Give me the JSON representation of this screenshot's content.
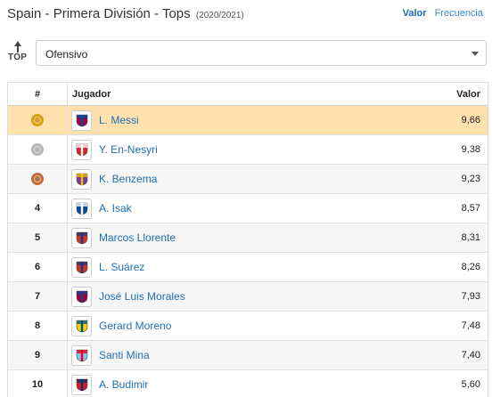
{
  "header": {
    "title": "Spain - Primera División - Tops",
    "season": "(2020/2021)",
    "toggle_value": "Valor",
    "toggle_frequency": "Frecuencia"
  },
  "top_icon_label": "TOP",
  "category_select": {
    "selected": "Ofensivo"
  },
  "table": {
    "headers": {
      "rank": "#",
      "player": "Jugador",
      "value": "Valor"
    },
    "rows": [
      {
        "rank": "",
        "medal": "gold",
        "medal_color": "#d4a017",
        "player": "L. Messi",
        "value": "9,66",
        "club_icon": "barcelona-crest-icon",
        "crest_colors": [
          "#a50044",
          "#004d98"
        ]
      },
      {
        "rank": "",
        "medal": "silver",
        "medal_color": "#b7b7b7",
        "player": "Y. En-Nesyri",
        "value": "9,38",
        "club_icon": "sevilla-crest-icon",
        "crest_colors": [
          "#d9262e",
          "#ffffff"
        ]
      },
      {
        "rank": "",
        "medal": "bronze",
        "medal_color": "#c0703e",
        "player": "K. Benzema",
        "value": "9,23",
        "club_icon": "real-madrid-crest-icon",
        "crest_colors": [
          "#6d3c9c",
          "#f0c000"
        ]
      },
      {
        "rank": "4",
        "player": "A. Isak",
        "value": "8,57",
        "club_icon": "real-sociedad-crest-icon",
        "crest_colors": [
          "#0b4aa2",
          "#ffffff"
        ]
      },
      {
        "rank": "5",
        "player": "Marcos Llorente",
        "value": "8,31",
        "club_icon": "atletico-madrid-crest-icon",
        "crest_colors": [
          "#cb3524",
          "#27387a"
        ]
      },
      {
        "rank": "6",
        "player": "L. Suárez",
        "value": "8,26",
        "club_icon": "atletico-madrid-crest-icon",
        "crest_colors": [
          "#cb3524",
          "#27387a"
        ]
      },
      {
        "rank": "7",
        "player": "José Luis Morales",
        "value": "7,93",
        "club_icon": "levante-crest-icon",
        "crest_colors": [
          "#a0002f",
          "#1d3f8a"
        ]
      },
      {
        "rank": "8",
        "player": "Gerard Moreno",
        "value": "7,48",
        "club_icon": "villarreal-crest-icon",
        "crest_colors": [
          "#f5d000",
          "#005187"
        ]
      },
      {
        "rank": "9",
        "player": "Santi Mina",
        "value": "7,40",
        "club_icon": "celta-crest-icon",
        "crest_colors": [
          "#8ac3ee",
          "#e2001a"
        ]
      },
      {
        "rank": "10",
        "player": "A. Budimir",
        "value": "5,60",
        "club_icon": "osasuna-crest-icon",
        "crest_colors": [
          "#d91a21",
          "#0a346f"
        ]
      }
    ]
  }
}
